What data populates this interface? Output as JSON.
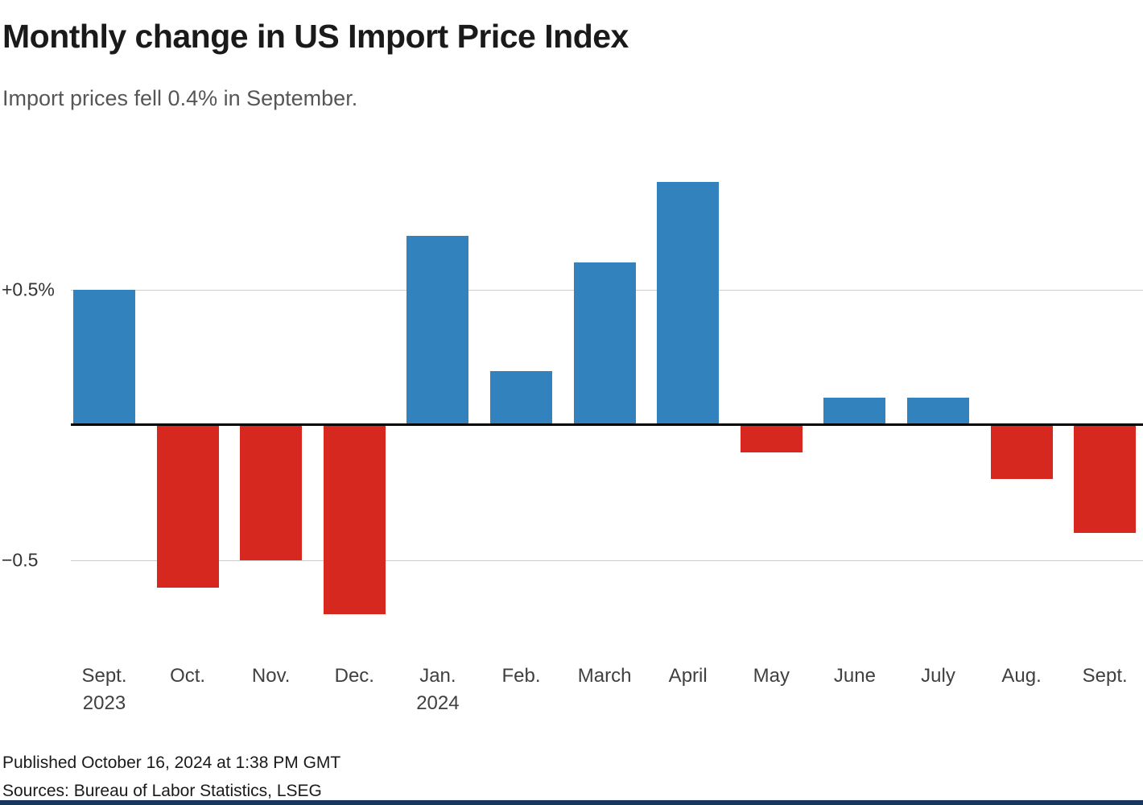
{
  "header": {
    "title": "Monthly change in US Import Price Index",
    "subtitle": "Import prices fell 0.4% in September."
  },
  "chart_data": {
    "type": "bar",
    "title": "Monthly change in US Import Price Index",
    "subtitle": "Import prices fell 0.4% in September.",
    "categories": [
      "Sept.",
      "Oct.",
      "Nov.",
      "Dec.",
      "Jan.",
      "Feb.",
      "March",
      "April",
      "May",
      "June",
      "July",
      "Aug.",
      "Sept."
    ],
    "category_sublabels": [
      "2023",
      "",
      "",
      "",
      "2024",
      "",
      "",
      "",
      "",
      "",
      "",
      "",
      ""
    ],
    "values": [
      0.5,
      -0.6,
      -0.5,
      -0.7,
      0.7,
      0.2,
      0.6,
      0.9,
      -0.1,
      0.1,
      0.1,
      -0.2,
      -0.4
    ],
    "unit": "%",
    "xlabel": "",
    "ylabel": "",
    "ylim": [
      -0.8,
      1.0
    ],
    "yticks": [
      {
        "value": 0.5,
        "label": "+0.5%"
      },
      {
        "value": -0.5,
        "label": "−0.5"
      }
    ],
    "grid": "horizontal",
    "legend": "none",
    "colors": {
      "positive": "#3182bd",
      "negative": "#d7281f",
      "gridline": "#cccccc",
      "zeroline": "#000000"
    }
  },
  "footer": {
    "published": "Published October 16, 2024 at 1:38 PM GMT",
    "sources": "Sources: Bureau of Labor Statistics, LSEG"
  },
  "theme": {
    "accent_bar_color": "#17375e"
  }
}
